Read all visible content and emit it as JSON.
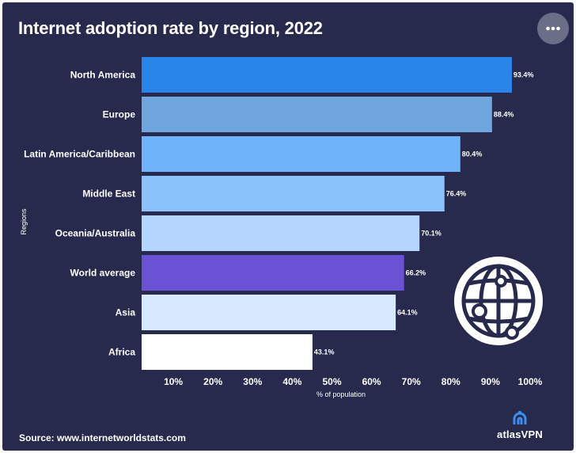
{
  "chart_data": {
    "type": "bar",
    "orientation": "horizontal",
    "title": "Internet adoption rate by region, 2022",
    "xlabel": "% of population",
    "ylabel": "Regions",
    "xlim": [
      0,
      100
    ],
    "x_ticks": [
      "10%",
      "20%",
      "30%",
      "40%",
      "50%",
      "60%",
      "70%",
      "80%",
      "90%",
      "100%"
    ],
    "categories": [
      "North America",
      "Europe",
      "Latin America/Caribbean",
      "Middle East",
      "Oceania/Australia",
      "World average",
      "Asia",
      "Africa"
    ],
    "values": [
      93.4,
      88.4,
      80.4,
      76.4,
      70.1,
      66.2,
      64.1,
      43.1
    ],
    "value_labels": [
      "93.4%",
      "88.4%",
      "80.4%",
      "76.4%",
      "70.1%",
      "66.2%",
      "64.1%",
      "43.1%"
    ],
    "colors": [
      "#2a85ea",
      "#6fa6dd",
      "#6fb3fb",
      "#8ac2fb",
      "#b4d6fc",
      "#6a52d5",
      "#d9e9fd",
      "#ffffff"
    ],
    "grid": false,
    "legend": "none"
  },
  "source": "Source: www.internetworldstats.com",
  "brand": {
    "name": "atlasVPN",
    "logo_icon": "atlasvpn-logo-icon"
  },
  "decoration": {
    "icon": "globe-network-icon"
  },
  "toolbar": {
    "menu_icon": "more-options-icon"
  }
}
